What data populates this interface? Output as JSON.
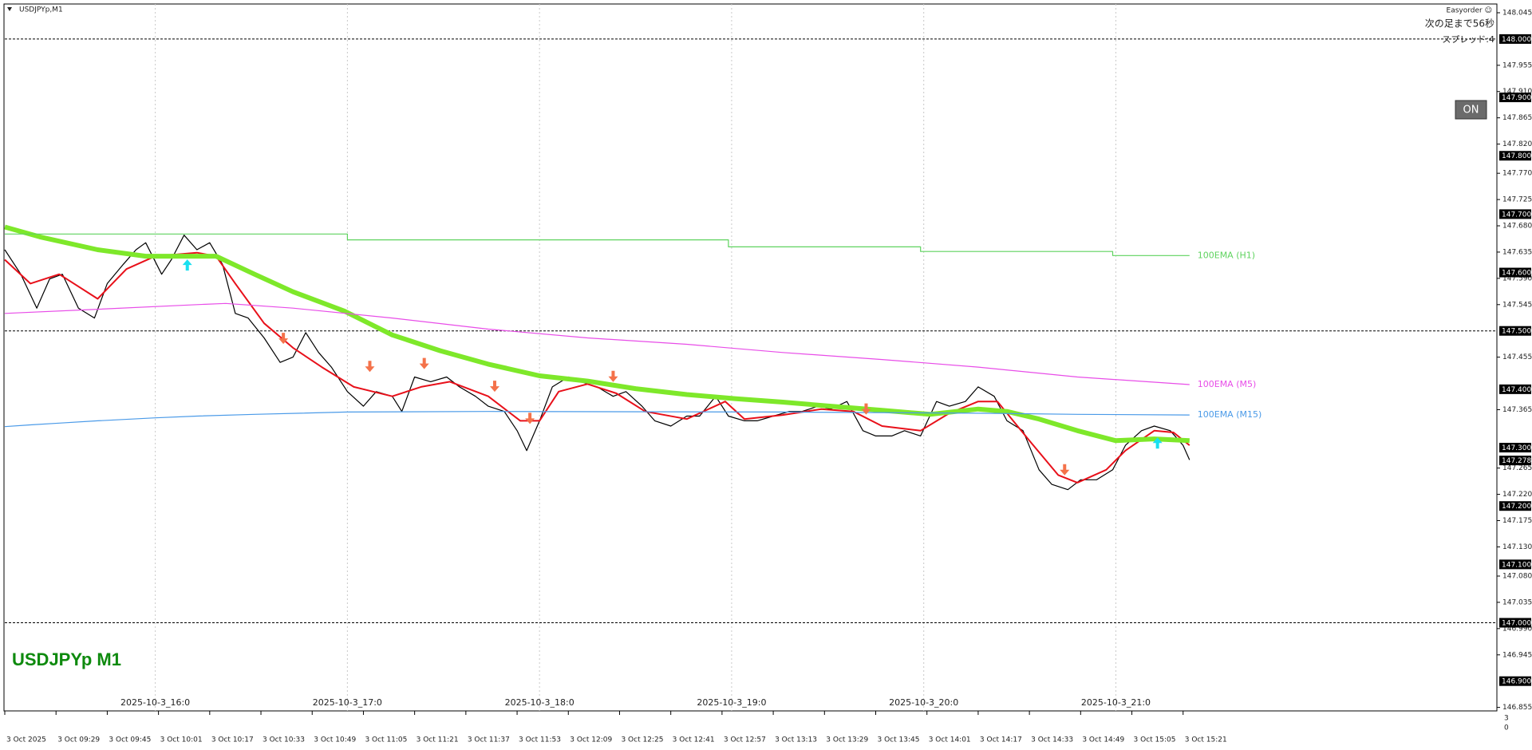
{
  "header": {
    "symbol": "USDJPYp,M1",
    "indicator": "Easyorder ☺",
    "countdown": "次の足まで56秒",
    "spread": "スプレッド:4",
    "button": "ON",
    "watermark": "USDJPYp M1",
    "corner": [
      "3",
      "0"
    ]
  },
  "chart_data": {
    "type": "line",
    "xlim": [
      0,
      466
    ],
    "ylim": [
      146.849,
      148.06
    ],
    "xticks": [
      {
        "value": 0,
        "label": "3 Oct 2025"
      },
      {
        "value": 16,
        "label": "3 Oct 09:29"
      },
      {
        "value": 32,
        "label": "3 Oct 09:45"
      },
      {
        "value": 48,
        "label": "3 Oct 10:01"
      },
      {
        "value": 64,
        "label": "3 Oct 10:17"
      },
      {
        "value": 80,
        "label": "3 Oct 10:33"
      },
      {
        "value": 96,
        "label": "3 Oct 10:49"
      },
      {
        "value": 112,
        "label": "3 Oct 11:05"
      },
      {
        "value": 128,
        "label": "3 Oct 11:21"
      },
      {
        "value": 144,
        "label": "3 Oct 11:37"
      },
      {
        "value": 160,
        "label": "3 Oct 11:53"
      },
      {
        "value": 176,
        "label": "3 Oct 12:09"
      },
      {
        "value": 192,
        "label": "3 Oct 12:25"
      },
      {
        "value": 208,
        "label": "3 Oct 12:41"
      },
      {
        "value": 224,
        "label": "3 Oct 12:57"
      },
      {
        "value": 240,
        "label": "3 Oct 13:13"
      },
      {
        "value": 256,
        "label": "3 Oct 13:29"
      },
      {
        "value": 272,
        "label": "3 Oct 13:45"
      },
      {
        "value": 288,
        "label": "3 Oct 14:01"
      },
      {
        "value": 304,
        "label": "3 Oct 14:17"
      },
      {
        "value": 320,
        "label": "3 Oct 14:33"
      },
      {
        "value": 336,
        "label": "3 Oct 14:49"
      },
      {
        "value": 352,
        "label": "3 Oct 15:05"
      },
      {
        "value": 368,
        "label": "3 Oct 15:21"
      }
    ],
    "hour_markers": [
      {
        "value": 47,
        "label": "2025-10-3_16:0"
      },
      {
        "value": 107,
        "label": "2025-10-3_17:0"
      },
      {
        "value": 167,
        "label": "2025-10-3_18:0"
      },
      {
        "value": 227,
        "label": "2025-10-3_19:0"
      },
      {
        "value": 287,
        "label": "2025-10-3_20:0"
      },
      {
        "value": 347,
        "label": "2025-10-3_21:0"
      }
    ],
    "yticks": [
      {
        "value": 148.045,
        "label": "148.045"
      },
      {
        "value": 147.955,
        "label": "147.955"
      },
      {
        "value": 147.91,
        "label": "147.910"
      },
      {
        "value": 147.865,
        "label": "147.865"
      },
      {
        "value": 147.82,
        "label": "147.820"
      },
      {
        "value": 147.77,
        "label": "147.770"
      },
      {
        "value": 147.725,
        "label": "147.725"
      },
      {
        "value": 147.68,
        "label": "147.680"
      },
      {
        "value": 147.635,
        "label": "147.635"
      },
      {
        "value": 147.59,
        "label": "147.590"
      },
      {
        "value": 147.545,
        "label": "147.545"
      },
      {
        "value": 147.455,
        "label": "147.455"
      },
      {
        "value": 147.365,
        "label": "147.365"
      },
      {
        "value": 147.265,
        "label": "147.265"
      },
      {
        "value": 147.22,
        "label": "147.220"
      },
      {
        "value": 147.175,
        "label": "147.175"
      },
      {
        "value": 147.13,
        "label": "147.130"
      },
      {
        "value": 147.08,
        "label": "147.080"
      },
      {
        "value": 147.035,
        "label": "147.035"
      },
      {
        "value": 146.99,
        "label": "146.990"
      },
      {
        "value": 146.945,
        "label": "146.945"
      },
      {
        "value": 146.855,
        "label": "146.855"
      }
    ],
    "level_ticks": [
      {
        "value": 148.0,
        "label": "148.000"
      },
      {
        "value": 147.9,
        "label": "147.900"
      },
      {
        "value": 147.8,
        "label": "147.800"
      },
      {
        "value": 147.7,
        "label": "147.700"
      },
      {
        "value": 147.6,
        "label": "147.600"
      },
      {
        "value": 147.5,
        "label": "147.500"
      },
      {
        "value": 147.4,
        "label": "147.400"
      },
      {
        "value": 147.3,
        "label": "147.300"
      },
      {
        "value": 147.2,
        "label": "147.200"
      },
      {
        "value": 147.1,
        "label": "147.100"
      },
      {
        "value": 147.0,
        "label": "147.000"
      },
      {
        "value": 146.9,
        "label": "146.900"
      }
    ],
    "current_price": {
      "value": 147.278,
      "label": "147.278"
    },
    "hlines": [
      148.0,
      147.5,
      147.0
    ],
    "series": [
      {
        "color": "#000000",
        "x": [
          0,
          5,
          10,
          14,
          18,
          23,
          28,
          32,
          37,
          41,
          44,
          49,
          52,
          56,
          60,
          64,
          68,
          72,
          76,
          81,
          86,
          90,
          94,
          98,
          102,
          107,
          112,
          116,
          121,
          124,
          128,
          133,
          138,
          142,
          147,
          151,
          156,
          160,
          163,
          167,
          171,
          176,
          180,
          185,
          190,
          194,
          199,
          203,
          208,
          213,
          217,
          222,
          226,
          231,
          235,
          240,
          245,
          249,
          254,
          258,
          263,
          268,
          272,
          277,
          281,
          286,
          291,
          295,
          300,
          304,
          309,
          313,
          318,
          323,
          327,
          332,
          336,
          341,
          346,
          350,
          355,
          359,
          364,
          368,
          370
        ],
        "values": [
          147.639,
          147.597,
          147.539,
          147.589,
          147.597,
          147.539,
          147.522,
          147.581,
          147.614,
          147.639,
          147.651,
          147.597,
          147.622,
          147.664,
          147.639,
          147.651,
          147.614,
          147.53,
          147.522,
          147.488,
          147.446,
          147.455,
          147.497,
          147.463,
          147.438,
          147.396,
          147.371,
          147.396,
          147.388,
          147.362,
          147.421,
          147.413,
          147.421,
          147.404,
          147.388,
          147.371,
          147.362,
          147.329,
          147.295,
          147.346,
          147.404,
          147.421,
          147.413,
          147.404,
          147.388,
          147.396,
          147.371,
          147.346,
          147.337,
          147.354,
          147.354,
          147.388,
          147.354,
          147.346,
          147.346,
          147.354,
          147.362,
          147.362,
          147.371,
          147.366,
          147.379,
          147.329,
          147.32,
          147.32,
          147.329,
          147.32,
          147.379,
          147.371,
          147.379,
          147.404,
          147.388,
          147.346,
          147.329,
          147.262,
          147.237,
          147.228,
          147.245,
          147.245,
          147.262,
          147.304,
          147.329,
          147.337,
          147.329,
          147.304,
          147.279
        ]
      },
      {
        "color": "#e8101a",
        "x": [
          0,
          8,
          17,
          29,
          38,
          47,
          60,
          66,
          72,
          81,
          90,
          99,
          109,
          115,
          121,
          130,
          139,
          151,
          161,
          167,
          173,
          182,
          191,
          200,
          213,
          225,
          231,
          243,
          255,
          265,
          274,
          286,
          295,
          304,
          310,
          320,
          329,
          335,
          344,
          350,
          359,
          365,
          370
        ],
        "values": [
          147.622,
          147.581,
          147.597,
          147.555,
          147.606,
          147.628,
          147.634,
          147.628,
          147.581,
          147.513,
          147.471,
          147.438,
          147.404,
          147.396,
          147.388,
          147.404,
          147.413,
          147.388,
          147.346,
          147.346,
          147.396,
          147.409,
          147.393,
          147.362,
          147.349,
          147.379,
          147.349,
          147.356,
          147.366,
          147.362,
          147.337,
          147.329,
          147.359,
          147.379,
          147.379,
          147.312,
          147.253,
          147.24,
          147.262,
          147.295,
          147.329,
          147.326,
          147.304
        ]
      },
      {
        "color": "#7ee82a",
        "x": [
          0,
          11,
          29,
          44,
          60,
          66,
          78,
          90,
          106,
          121,
          136,
          151,
          167,
          182,
          197,
          213,
          228,
          243,
          258,
          274,
          289,
          304,
          313,
          323,
          335,
          347,
          359,
          370
        ],
        "values": [
          147.678,
          147.661,
          147.639,
          147.628,
          147.628,
          147.628,
          147.597,
          147.567,
          147.534,
          147.493,
          147.466,
          147.443,
          147.423,
          147.414,
          147.401,
          147.391,
          147.384,
          147.378,
          147.371,
          147.364,
          147.357,
          147.366,
          147.362,
          147.349,
          147.329,
          147.312,
          147.315,
          147.312
        ]
      },
      {
        "name": "100EMA (H1)",
        "color": "#5fd35f",
        "x": [
          0,
          107,
          107,
          226,
          226,
          286,
          286,
          346,
          346,
          370
        ],
        "values": [
          147.666,
          147.666,
          147.656,
          147.656,
          147.644,
          147.644,
          147.636,
          147.636,
          147.629,
          147.629
        ]
      },
      {
        "name": "100EMA (M5)",
        "color": "#e84de8",
        "x": [
          0,
          29,
          60,
          69,
          90,
          121,
          151,
          182,
          213,
          243,
          274,
          304,
          335,
          370
        ],
        "values": [
          147.53,
          147.537,
          147.545,
          147.547,
          147.539,
          147.522,
          147.503,
          147.488,
          147.477,
          147.463,
          147.451,
          147.438,
          147.421,
          147.408
        ]
      },
      {
        "name": "100EMA (M15)",
        "color": "#4a9ae8",
        "x": [
          0,
          8,
          17,
          29,
          47,
          60,
          78,
          107,
          151,
          243,
          304,
          335,
          370
        ],
        "values": [
          147.336,
          147.339,
          147.342,
          147.346,
          147.351,
          147.354,
          147.357,
          147.361,
          147.362,
          147.361,
          147.359,
          147.357,
          147.356
        ]
      }
    ],
    "down_arrows": {
      "color": "#f4724a",
      "x": [
        87,
        114,
        131,
        153,
        164,
        190,
        269,
        331
      ],
      "values": [
        147.483,
        147.435,
        147.44,
        147.401,
        147.346,
        147.418,
        147.362,
        147.258
      ]
    },
    "up_arrows": {
      "color": "#19e0f0",
      "x": [
        57,
        360
      ],
      "values": [
        147.617,
        147.312
      ]
    }
  }
}
